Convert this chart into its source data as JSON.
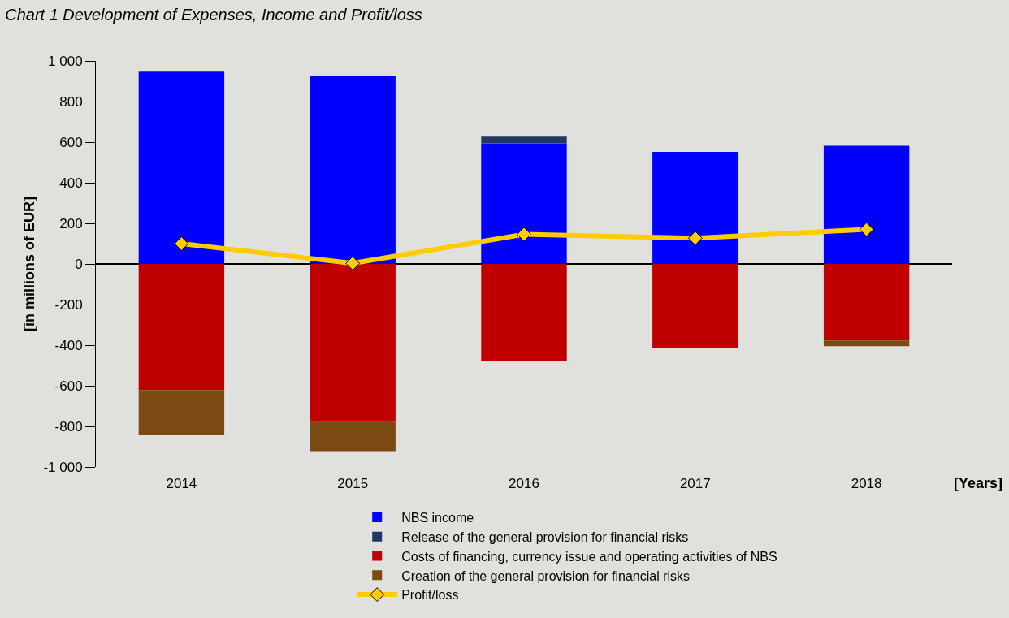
{
  "chart_data": {
    "type": "bar",
    "title": "Chart 1 Development of Expenses, Income and Profit/loss",
    "xlabel": "[Years]",
    "ylabel": "[in millions of EUR]",
    "categories": [
      "2014",
      "2015",
      "2016",
      "2017",
      "2018"
    ],
    "stacked": true,
    "series": [
      {
        "name": "NBS income",
        "color": "#0000ff",
        "values": [
          947,
          926,
          594,
          552,
          582
        ]
      },
      {
        "name": "Release of the general provision for financial risks",
        "color": "#1f3864",
        "values": [
          null,
          null,
          33,
          null,
          null
        ]
      },
      {
        "name": "Costs of financing, currency issue and operating activities of NBS",
        "color": "#c00000",
        "values": [
          -621,
          -779,
          -476,
          -416,
          -377
        ]
      },
      {
        "name": "Creation of the general provision for financial risks",
        "color": "#7b4a12",
        "values": [
          -223,
          -143,
          null,
          null,
          -28
        ]
      },
      {
        "name": "Profit/loss",
        "type": "line",
        "color": "#ffcc00",
        "marker": "diamond",
        "values": [
          100,
          3,
          146,
          127,
          170
        ]
      }
    ],
    "ylim": [
      -1000,
      1000
    ],
    "yticks": [
      {
        "value": -1000,
        "label": "-1 000"
      },
      -800,
      -600,
      -400,
      -200,
      0,
      200,
      400,
      600,
      800,
      {
        "value": 1000,
        "label": "1 000"
      }
    ],
    "legend": "bottom"
  }
}
